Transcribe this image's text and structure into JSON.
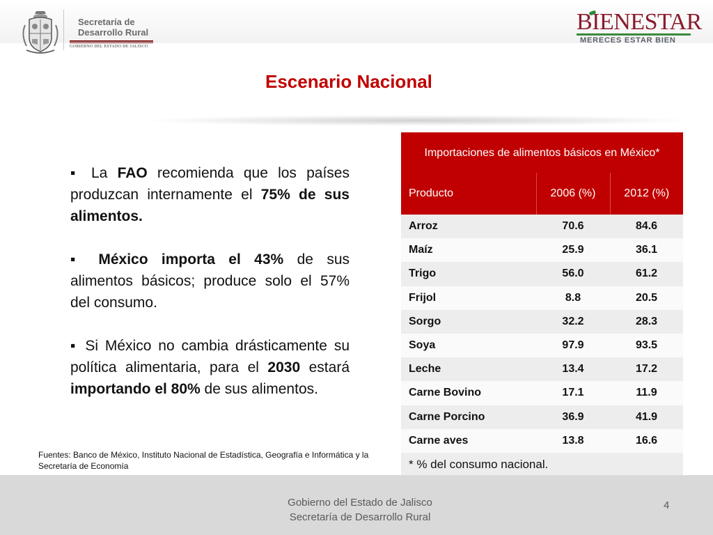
{
  "header": {
    "secretaria_line1": "Secretaría de",
    "secretaria_line2": "Desarrollo Rural",
    "gobierno": "GOBIERNO DEL ESTADO DE JALISCO",
    "brand_name": "BIENESTAR",
    "brand_tagline": "MERECES ESTAR BIEN",
    "brand_color": "#8a1c2c",
    "brand_accent": "#3a8a3a"
  },
  "slide": {
    "title": "Escenario Nacional",
    "title_color": "#c00000"
  },
  "bullets": [
    {
      "parts": [
        "La ",
        "FAO",
        " recomienda que los países produzcan internamente el ",
        "75% de sus alimentos."
      ]
    },
    {
      "parts": [
        "México importa el 43%",
        " de sus alimentos básicos; produce solo el 57% del consumo."
      ]
    },
    {
      "parts": [
        "Si México no cambia drásticamente su política alimentaria, para el ",
        "2030",
        " estará ",
        "importando el 80%",
        " de sus alimentos."
      ]
    }
  ],
  "sources": "Fuentes: Banco de México, Instituto Nacional de Estadística, Geografía e Informática y la Secretaría de Economía",
  "table": {
    "caption": "Importaciones de alimentos básicos en México*",
    "header_color": "#c00000",
    "columns": [
      "Producto",
      "2006 (%)",
      "2012 (%)"
    ],
    "rows": [
      {
        "producto": "Arroz",
        "y2006": "70.6",
        "y2012": "84.6"
      },
      {
        "producto": "Maíz",
        "y2006": "25.9",
        "y2012": "36.1"
      },
      {
        "producto": "Trigo",
        "y2006": "56.0",
        "y2012": "61.2"
      },
      {
        "producto": "Frijol",
        "y2006": "8.8",
        "y2012": "20.5"
      },
      {
        "producto": "Sorgo",
        "y2006": "32.2",
        "y2012": "28.3"
      },
      {
        "producto": "Soya",
        "y2006": "97.9",
        "y2012": "93.5"
      },
      {
        "producto": "Leche",
        "y2006": "13.4",
        "y2012": "17.2"
      },
      {
        "producto": "Carne Bovino",
        "y2006": "17.1",
        "y2012": "11.9"
      },
      {
        "producto": "Carne Porcino",
        "y2006": "36.9",
        "y2012": "41.9"
      },
      {
        "producto": "Carne aves",
        "y2006": "13.8",
        "y2012": "16.6"
      }
    ],
    "footnote": "* % del consumo nacional."
  },
  "footer": {
    "line1": "Gobierno del Estado de Jalisco",
    "line2": "Secretaría de Desarrollo Rural",
    "page_number": "4"
  }
}
